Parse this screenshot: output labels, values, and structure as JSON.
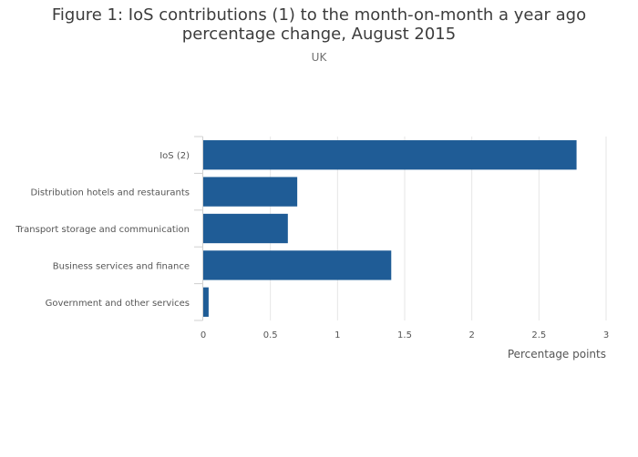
{
  "chart_data": {
    "type": "bar",
    "orientation": "horizontal",
    "title_lines": [
      "Figure 1: IoS contributions (1) to the month-on-month a year ago",
      "percentage change, August 2015"
    ],
    "subtitle": "UK",
    "categories": [
      "IoS (2)",
      "Distribution hotels and restaurants",
      "Transport storage and communication",
      "Business services and finance",
      "Government and other services"
    ],
    "values": [
      2.78,
      0.7,
      0.63,
      1.4,
      0.04
    ],
    "xlabel": "Percentage points",
    "ylabel": "",
    "xlim": [
      0,
      3
    ],
    "xticks": [
      0,
      0.5,
      1,
      1.5,
      2,
      2.5,
      3
    ],
    "xtick_labels": [
      "0",
      "0.5",
      "1",
      "1.5",
      "2",
      "2.5",
      "3"
    ],
    "grid": true,
    "bar_color": "#1f5c96",
    "grid_color": "#e6e6e6"
  }
}
